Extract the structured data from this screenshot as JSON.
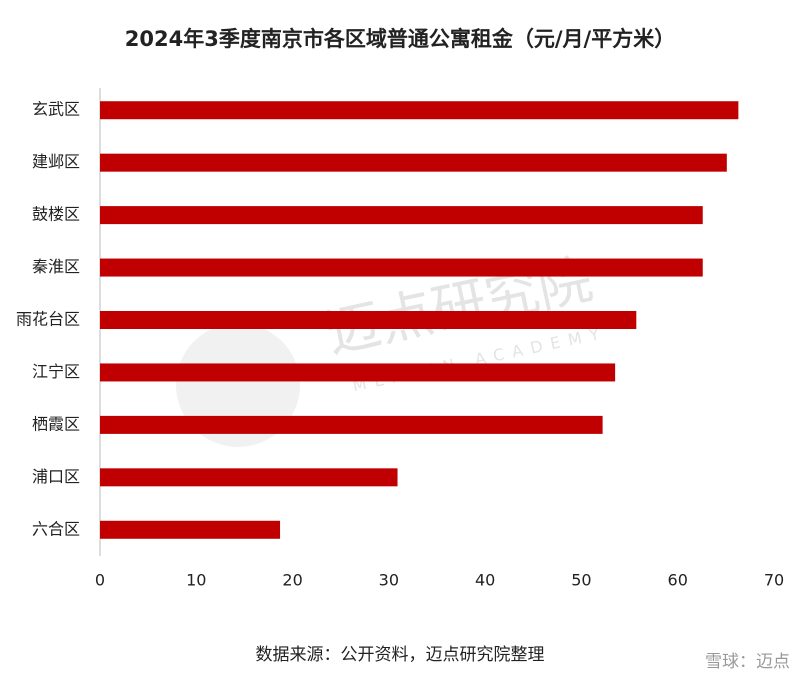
{
  "chart_data": {
    "type": "barh",
    "title": "2024年3季度南京市各区域普通公寓租金（元/月/平方米）",
    "categories": [
      "玄武区",
      "建邺区",
      "鼓楼区",
      "秦淮区",
      "雨花台区",
      "江宁区",
      "栖霞区",
      "浦口区",
      "六合区"
    ],
    "values": [
      66.3,
      65.1,
      62.6,
      62.6,
      55.7,
      53.5,
      52.2,
      30.9,
      18.7
    ],
    "color": "#c00000",
    "xlim": [
      0,
      70
    ],
    "xticks": [
      0,
      10,
      20,
      30,
      40,
      50,
      60,
      70
    ],
    "grid": false,
    "source": "数据来源：公开资料，迈点研究院整理",
    "watermark": "迈点研究院",
    "watermark_sub": "MEADIN ACADEMY",
    "corner_mark": "雪球：迈点"
  }
}
